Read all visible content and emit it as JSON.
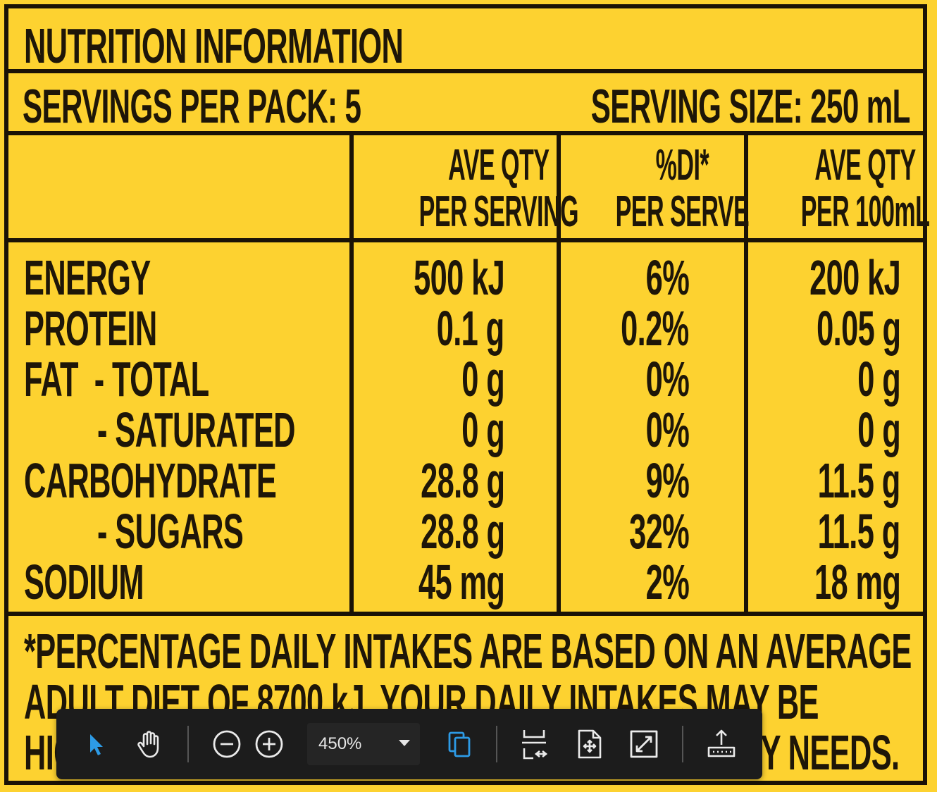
{
  "label": {
    "title": "NUTRITION INFORMATION",
    "servings_per_pack": "SERVINGS PER PACK: 5",
    "serving_size": "SERVING SIZE: 250 mL",
    "columns": [
      {
        "line1": "AVE QTY",
        "line2": "PER SERVING"
      },
      {
        "line1": "%DI*",
        "line2": "PER SERVE"
      },
      {
        "line1": "AVE QTY",
        "line2": "PER 100mL"
      }
    ],
    "rows": [
      {
        "name": "ENERGY",
        "per_serving": "500 kJ",
        "di": "6%",
        "per_100ml": "200 kJ"
      },
      {
        "name": "PROTEIN",
        "per_serving": "0.1 g",
        "di": "0.2%",
        "per_100ml": "0.05 g"
      },
      {
        "name": "FAT  - TOTAL",
        "per_serving": "0 g",
        "di": "0%",
        "per_100ml": "0 g"
      },
      {
        "name": "- SATURATED",
        "per_serving": "0 g",
        "di": "0%",
        "per_100ml": "0 g"
      },
      {
        "name": "CARBOHYDRATE",
        "per_serving": "28.8 g",
        "di": "9%",
        "per_100ml": "11.5 g"
      },
      {
        "name": "- SUGARS",
        "per_serving": "28.8 g",
        "di": "32%",
        "per_100ml": "11.5 g"
      },
      {
        "name": "SODIUM",
        "per_serving": "45 mg",
        "di": "2%",
        "per_100ml": "18 mg"
      }
    ],
    "footnote": [
      "*PERCENTAGE DAILY INTAKES ARE BASED ON AN AVERAGE",
      "ADULT DIET OF 8700 kJ. YOUR DAILY INTAKES MAY BE",
      "HIGHER OR LOWER DEPENDING ON YOUR ENERGY NEEDS."
    ]
  },
  "toolbar": {
    "zoom_value": "450%",
    "tools": [
      "select-icon",
      "hand-icon",
      "zoom-out-icon",
      "zoom-in-icon",
      "copy-icon",
      "fit-width-icon",
      "fit-page-icon",
      "expand-icon",
      "upload-icon"
    ],
    "accent": "#2d9be6"
  },
  "colors": {
    "background": "#fdd230",
    "ink": "#1e1608",
    "toolbar": "#1c1c1c"
  }
}
